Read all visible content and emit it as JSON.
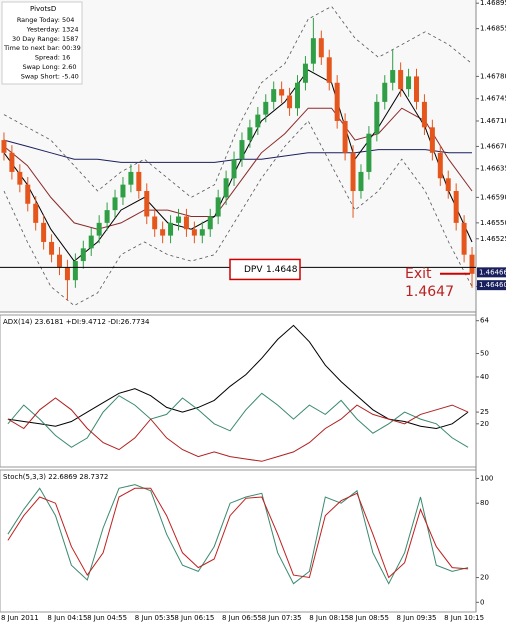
{
  "chart_data": [
    {
      "type": "candlestick",
      "info_box": {
        "title": "PivotsD",
        "rows": [
          [
            "Range  Today:",
            "504"
          ],
          [
            "Yesterday:",
            "1324"
          ],
          [
            "30 Day Range:",
            "1587"
          ],
          [
            "Time to next bar:",
            "00:39"
          ],
          [
            "Spread:",
            "16"
          ],
          [
            "Swap  Long:",
            "2.60"
          ],
          [
            "Swap  Short:",
            "-5.40"
          ]
        ]
      },
      "categories": [
        null,
        null,
        "8 Jun 2011",
        null,
        null,
        null,
        null,
        null,
        "8 Jun 04:15",
        null,
        null,
        null,
        null,
        "8 Jun 04:55",
        null,
        null,
        null,
        null,
        null,
        "8 Jun 05:35",
        null,
        null,
        null,
        null,
        "8 Jun 06:15",
        null,
        null,
        null,
        null,
        null,
        "8 Jun 06:55",
        null,
        null,
        null,
        null,
        "8 Jun 07:35",
        null,
        null,
        null,
        null,
        null,
        "8 Jun 08:15",
        null,
        null,
        null,
        null,
        "8 Jun 08:55",
        null,
        null,
        null,
        null,
        null,
        "8 Jun 09:35",
        null,
        null,
        null,
        null,
        null,
        "8 Jun 10:15",
        null
      ],
      "open": [
        1.4668,
        1.4666,
        1.4663,
        1.4661,
        1.4658,
        1.4655,
        1.4652,
        1.465,
        1.4648,
        1.4646,
        1.4649,
        1.4651,
        1.4653,
        1.4655,
        1.4657,
        1.4659,
        1.4661,
        1.4663,
        1.466,
        1.4656,
        1.4654,
        1.4653,
        1.4655,
        1.4656,
        1.4654,
        1.4653,
        1.4654,
        1.4656,
        1.4659,
        1.4662,
        1.4665,
        1.4668,
        1.467,
        1.4672,
        1.4674,
        1.4676,
        1.4675,
        1.4673,
        1.4677,
        1.468,
        1.4684,
        1.4681,
        1.4677,
        1.4671,
        1.4666,
        1.466,
        1.4663,
        1.4669,
        1.4674,
        1.4677,
        1.4679,
        1.4676,
        1.4678,
        1.4674,
        1.467,
        1.4666,
        1.4662,
        1.466,
        1.4655,
        1.465
      ],
      "high": [
        1.46692,
        1.46672,
        1.46642,
        1.46622,
        1.46592,
        1.46562,
        1.46532,
        1.46512,
        1.46492,
        1.46502,
        1.46522,
        1.46542,
        1.46562,
        1.46582,
        1.46602,
        1.46622,
        1.46642,
        1.46642,
        1.46612,
        1.46572,
        1.46552,
        1.46562,
        1.46572,
        1.46572,
        1.46552,
        1.46552,
        1.46572,
        1.46602,
        1.46632,
        1.46662,
        1.46692,
        1.46712,
        1.46732,
        1.46752,
        1.46772,
        1.46772,
        1.46762,
        1.46782,
        1.46812,
        1.46872,
        1.46852,
        1.46822,
        1.46782,
        1.46722,
        1.46672,
        1.46642,
        1.46702,
        1.46752,
        1.46782,
        1.46822,
        1.46802,
        1.46792,
        1.46792,
        1.46752,
        1.46712,
        1.46672,
        1.46632,
        1.46612,
        1.46562,
        1.46512
      ],
      "low": [
        1.46648,
        1.46618,
        1.46598,
        1.46568,
        1.46538,
        1.46508,
        1.46488,
        1.46468,
        1.46428,
        1.46448,
        1.46478,
        1.46498,
        1.46518,
        1.46538,
        1.46558,
        1.46578,
        1.46598,
        1.46588,
        1.46548,
        1.46528,
        1.46518,
        1.46518,
        1.46538,
        1.46528,
        1.46518,
        1.46518,
        1.46528,
        1.46548,
        1.46578,
        1.46608,
        1.46638,
        1.46668,
        1.46688,
        1.46708,
        1.46728,
        1.46738,
        1.46718,
        1.46718,
        1.46758,
        1.46788,
        1.46798,
        1.46758,
        1.46698,
        1.46648,
        1.46558,
        1.46588,
        1.46618,
        1.46678,
        1.46728,
        1.46758,
        1.46748,
        1.46748,
        1.46728,
        1.46688,
        1.46648,
        1.46608,
        1.46588,
        1.46538,
        1.46488,
        1.46448
      ],
      "close": [
        1.4666,
        1.4663,
        1.4661,
        1.4658,
        1.4655,
        1.4652,
        1.465,
        1.4648,
        1.4646,
        1.4649,
        1.4651,
        1.4653,
        1.4655,
        1.4657,
        1.4659,
        1.4661,
        1.4663,
        1.466,
        1.4656,
        1.4654,
        1.4653,
        1.4655,
        1.4656,
        1.4654,
        1.4653,
        1.4654,
        1.4656,
        1.4659,
        1.4662,
        1.4665,
        1.4668,
        1.467,
        1.4672,
        1.4674,
        1.4676,
        1.4675,
        1.4673,
        1.4677,
        1.468,
        1.4684,
        1.4681,
        1.4677,
        1.4671,
        1.4666,
        1.466,
        1.4663,
        1.4669,
        1.4674,
        1.4677,
        1.4679,
        1.4676,
        1.4678,
        1.4674,
        1.467,
        1.4666,
        1.4662,
        1.466,
        1.4655,
        1.465,
        1.4647
      ],
      "up_color": "#2f9e44",
      "down_color": "#e4561c",
      "overlays": [
        {
          "color": "#1a1f5e",
          "dashed": false,
          "values": [
            1.4668,
            1.4667,
            1.4666,
            1.4665,
            1.4665,
            1.46645,
            1.46645,
            1.46645,
            1.46645,
            1.46645,
            1.4665,
            1.4665,
            1.46655,
            1.4666,
            1.4666,
            1.4666,
            1.46665,
            1.46665,
            1.46665,
            1.4666,
            1.4666
          ]
        },
        {
          "color": "#8b2a2a",
          "dashed": false,
          "values": [
            1.4667,
            1.4664,
            1.4659,
            1.4655,
            1.4654,
            1.4655,
            1.4657,
            1.4657,
            1.4656,
            1.4656,
            1.4661,
            1.4666,
            1.4669,
            1.4673,
            1.4673,
            1.4668,
            1.4669,
            1.4673,
            1.4671,
            1.4665,
            1.466
          ]
        },
        {
          "color": "#000000",
          "dashed": false,
          "values": [
            1.4666,
            1.4661,
            1.4654,
            1.4649,
            1.4652,
            1.4657,
            1.4659,
            1.4655,
            1.4654,
            1.4656,
            1.4664,
            1.4671,
            1.4674,
            1.4679,
            1.4677,
            1.4665,
            1.467,
            1.4676,
            1.467,
            1.466,
            1.4652
          ]
        },
        {
          "color": "#555555",
          "dashed": true,
          "values": [
            1.4672,
            1.467,
            1.4668,
            1.4664,
            1.466,
            1.4663,
            1.4665,
            1.4662,
            1.4659,
            1.4661,
            1.467,
            1.4677,
            1.468,
            1.4687,
            1.4689,
            1.4684,
            1.4681,
            1.4683,
            1.4685,
            1.4683,
            1.468
          ]
        },
        {
          "color": "#555555",
          "dashed": true,
          "values": [
            1.466,
            1.4652,
            1.4645,
            1.4642,
            1.4644,
            1.465,
            1.4652,
            1.465,
            1.4649,
            1.465,
            1.4656,
            1.4662,
            1.4667,
            1.4671,
            1.4664,
            1.4657,
            1.466,
            1.4665,
            1.466,
            1.4652,
            1.4645
          ]
        }
      ],
      "ylim": [
        1.4641,
        1.469
      ],
      "yticks": [
        1.46895,
        1.46855,
        {
          "value": 1.4678,
          "label": "1.46780"
        },
        1.46745,
        {
          "value": 1.4671,
          "label": "1.46710"
        },
        {
          "value": 1.4667,
          "label": "1.46670"
        },
        1.46635,
        {
          "value": 1.4659,
          "label": "1.46590"
        },
        {
          "value": 1.4655,
          "label": "1.46550"
        },
        1.46525,
        {
          "value": 1.4645,
          "label": "1.46450"
        }
      ],
      "price_marks": [
        1.46466,
        {
          "value": 1.4646,
          "label": "1.46460"
        }
      ],
      "level": {
        "label": "DPV",
        "value": 1.4648
      },
      "exit": {
        "label": "Exit",
        "value": 1.4647
      }
    },
    {
      "type": "line",
      "title": "ADX(14) 23.6181 +DI:9.4712 -DI:26.7734",
      "series": [
        {
          "color": "#000000",
          "values": [
            22,
            21,
            20,
            19,
            21,
            25,
            29,
            33,
            35,
            32,
            27,
            25,
            27,
            30,
            36,
            41,
            48,
            56,
            62,
            55,
            45,
            38,
            32,
            26,
            22,
            21,
            19,
            18,
            20,
            25
          ]
        },
        {
          "color": "#3a8a6e",
          "values": [
            20,
            28,
            22,
            15,
            10,
            14,
            25,
            32,
            28,
            22,
            24,
            31,
            26,
            20,
            17,
            26,
            33,
            28,
            22,
            28,
            24,
            30,
            22,
            16,
            20,
            25,
            22,
            20,
            14,
            10
          ]
        },
        {
          "color": "#b02020",
          "values": [
            22,
            18,
            26,
            31,
            26,
            18,
            12,
            9,
            14,
            22,
            14,
            9,
            6,
            8,
            6,
            5,
            4,
            6,
            8,
            12,
            18,
            22,
            28,
            24,
            22,
            20,
            24,
            26,
            28,
            25
          ]
        }
      ],
      "ylim": [
        2,
        66
      ],
      "yticks": [
        20,
        25,
        40,
        50,
        64
      ]
    },
    {
      "type": "line",
      "title": "Stoch(5,3,3) 22.6869 28.7372",
      "series": [
        {
          "color": "#3a8a6e",
          "values": [
            55,
            75,
            92,
            70,
            30,
            18,
            60,
            92,
            95,
            90,
            55,
            30,
            25,
            45,
            80,
            85,
            88,
            40,
            15,
            25,
            85,
            80,
            90,
            40,
            15,
            40,
            85,
            30,
            25,
            28
          ]
        },
        {
          "color": "#c02020",
          "values": [
            50,
            70,
            85,
            80,
            45,
            22,
            40,
            85,
            92,
            92,
            70,
            40,
            28,
            35,
            70,
            84,
            85,
            55,
            22,
            20,
            70,
            82,
            88,
            55,
            20,
            32,
            75,
            45,
            28,
            27
          ]
        }
      ],
      "ylim": [
        -7,
        106
      ],
      "yticks": [
        0,
        20,
        80,
        100
      ]
    }
  ]
}
